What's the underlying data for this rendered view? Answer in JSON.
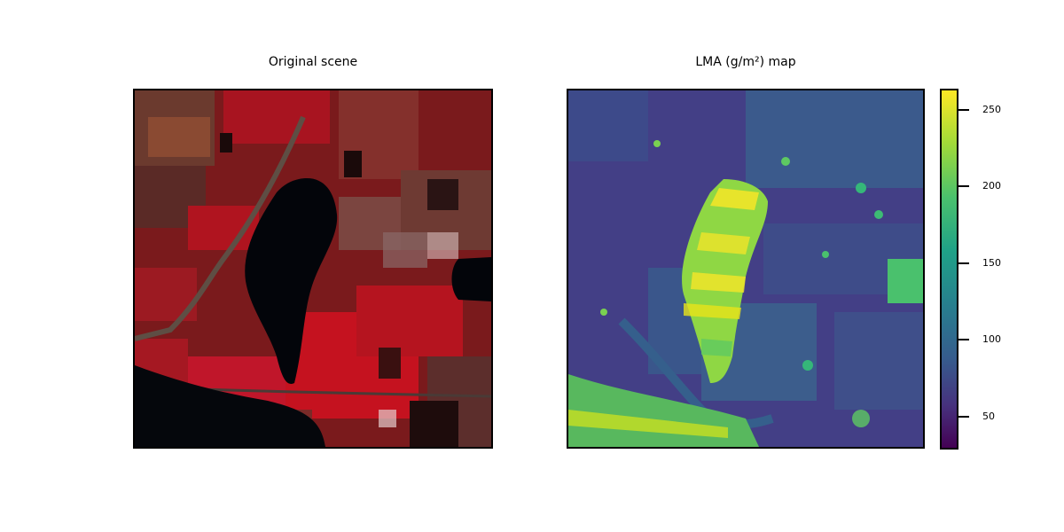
{
  "left_panel": {
    "title": "Original scene"
  },
  "right_panel": {
    "title": "LMA (g/m²) map"
  },
  "colorbar": {
    "colormap": "viridis",
    "ticks": [
      "250",
      "200",
      "150",
      "100",
      "50"
    ],
    "range": [
      30,
      265
    ]
  },
  "colors": {
    "vegetation_red": "#b3101c",
    "water_black": "#03050a",
    "viridis_low": "#440154",
    "viridis_high": "#fde725"
  }
}
